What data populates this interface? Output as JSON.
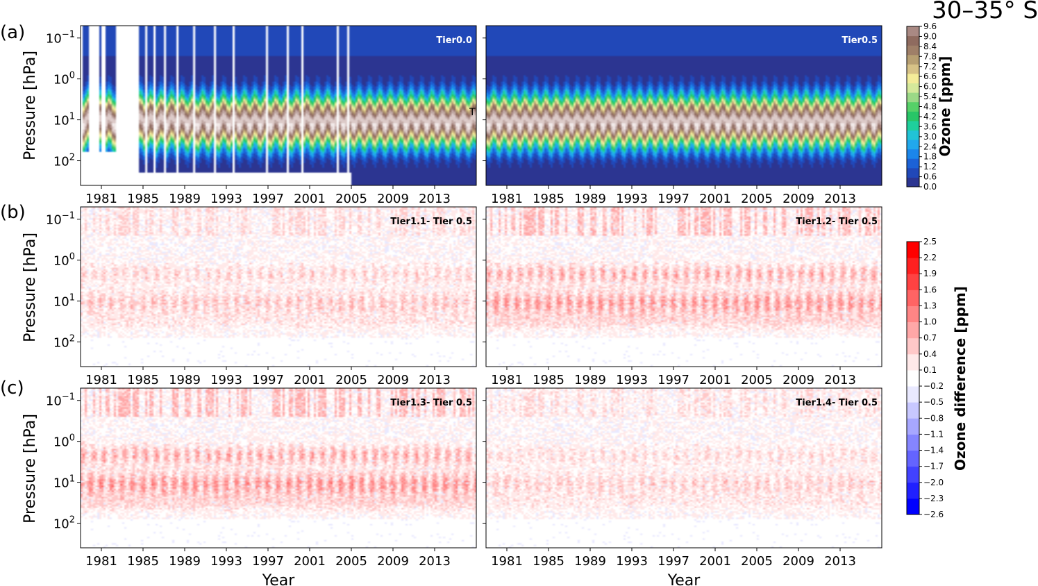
{
  "figure": {
    "suptitle": "30–35° S",
    "ylabel": "Pressure [hPa]",
    "xlabel": "Year",
    "panel_letters": [
      "(a)",
      "(b)",
      "(c)"
    ]
  },
  "colors": {
    "ozone_palette": [
      "#2c3591",
      "#2148b8",
      "#1c62d6",
      "#1b86ea",
      "#21a8ec",
      "#21c3d6",
      "#1fcf9c",
      "#28c567",
      "#56d168",
      "#9bd987",
      "#d5e99b",
      "#f4ec99",
      "#d7c287",
      "#b79f72",
      "#9f7f68",
      "#8f6b5f",
      "#a98983",
      "#c2aaa6",
      "#dccac8",
      "#f1e9e8",
      "#ffffff"
    ],
    "diff_palette": [
      "#0000ff",
      "#2020ff",
      "#4242ff",
      "#6464ff",
      "#8585ff",
      "#a7a7ff",
      "#c8c8ff",
      "#e9e9ff",
      "#ffffff",
      "#ffe9e9",
      "#ffc8c8",
      "#ffa7a7",
      "#ff8585",
      "#ff6464",
      "#ff4242",
      "#ff2020",
      "#ff0000"
    ],
    "missing": "#ffffff"
  },
  "chart_data": [
    {
      "id": "a-left",
      "type": "heatmap",
      "label": "Tier0.0",
      "label_color": "#ffffff",
      "variable": "ozone",
      "units": "ppm",
      "x_range": [
        1979,
        2017
      ],
      "y_range_hPa": [
        0.05,
        400
      ],
      "y_scale": "log",
      "yticks": [
        "10−1",
        "100",
        "101",
        "102"
      ],
      "xticks": [
        "1981",
        "1985",
        "1989",
        "1993",
        "1997",
        "2001",
        "2005",
        "2009",
        "2013"
      ],
      "missing_years": [
        [
          1979.0,
          1979.3
        ],
        [
          1979.9,
          1980.8
        ],
        [
          1981.0,
          1981.5
        ],
        [
          1982.5,
          1984.7
        ],
        [
          1985.2,
          1985.45
        ],
        [
          1986.0,
          1986.25
        ],
        [
          1987.0,
          1987.2
        ],
        [
          1988.2,
          1988.4
        ],
        [
          1989.9,
          1990.1
        ],
        [
          1991.8,
          1992.0
        ],
        [
          1993.6,
          1993.85
        ],
        [
          1996.8,
          1997.0
        ],
        [
          1998.8,
          1999.0
        ],
        [
          2000.2,
          2000.35
        ],
        [
          2003.6,
          2003.75
        ],
        [
          2004.7,
          2004.9
        ]
      ],
      "data_pressure_limit_hPa": 200
    },
    {
      "id": "a-right",
      "type": "heatmap",
      "label": "Tier0.5",
      "label_color": "#ffffff",
      "variable": "ozone",
      "units": "ppm",
      "x_range": [
        1979,
        2017
      ],
      "y_range_hPa": [
        0.05,
        400
      ],
      "y_scale": "log",
      "xticks": [
        "1981",
        "1985",
        "1989",
        "1993",
        "1997",
        "2001",
        "2005",
        "2009",
        "2013"
      ]
    },
    {
      "id": "b-left",
      "type": "heatmap",
      "label": "Tier1.1- Tier 0.5",
      "label_color": "#000000",
      "variable": "ozone difference",
      "units": "ppm",
      "intensity": 0.55,
      "yticks": [
        "10−1",
        "100",
        "101",
        "102"
      ],
      "xticks": [
        "1981",
        "1985",
        "1989",
        "1993",
        "1997",
        "2001",
        "2005",
        "2009",
        "2013"
      ]
    },
    {
      "id": "b-right",
      "type": "heatmap",
      "label": "Tier1.2- Tier 0.5",
      "label_color": "#000000",
      "variable": "ozone difference",
      "units": "ppm",
      "intensity": 0.95,
      "xticks": [
        "1981",
        "1985",
        "1989",
        "1993",
        "1997",
        "2001",
        "2005",
        "2009",
        "2013"
      ]
    },
    {
      "id": "c-left",
      "type": "heatmap",
      "label": "Tier1.3- Tier 0.5",
      "label_color": "#000000",
      "variable": "ozone difference",
      "units": "ppm",
      "intensity": 1.0,
      "yticks": [
        "10−1",
        "100",
        "101",
        "102"
      ],
      "xticks": [
        "1981",
        "1985",
        "1989",
        "1993",
        "1997",
        "2001",
        "2005",
        "2009",
        "2013"
      ]
    },
    {
      "id": "c-right",
      "type": "heatmap",
      "label": "Tier1.4- Tier 0.5",
      "label_color": "#000000",
      "variable": "ozone difference",
      "units": "ppm",
      "intensity": 0.45,
      "xticks": [
        "1981",
        "1985",
        "1989",
        "1993",
        "1997",
        "2001",
        "2005",
        "2009",
        "2013"
      ]
    }
  ],
  "colorbars": {
    "ozone": {
      "label": "Ozone [ppm]",
      "ticks": [
        "9.6",
        "9.0",
        "8.4",
        "7.8",
        "7.2",
        "6.6",
        "6.0",
        "5.4",
        "4.8",
        "4.2",
        "3.6",
        "3.0",
        "2.4",
        "1.8",
        "1.2",
        "0.6",
        "0.0"
      ],
      "range": [
        0.0,
        9.6
      ]
    },
    "diff": {
      "label": "Ozone difference [ppm]",
      "ticks": [
        "2.5",
        "2.2",
        "1.9",
        "1.6",
        "1.3",
        "1.0",
        "0.7",
        "0.4",
        "0.1",
        "−0.2",
        "−0.5",
        "−0.8",
        "−1.1",
        "−1.4",
        "−1.7",
        "−2.0",
        "−2.3",
        "−2.6"
      ],
      "range": [
        -2.6,
        2.5
      ]
    }
  },
  "annotations": {
    "stray_mark": "T"
  }
}
